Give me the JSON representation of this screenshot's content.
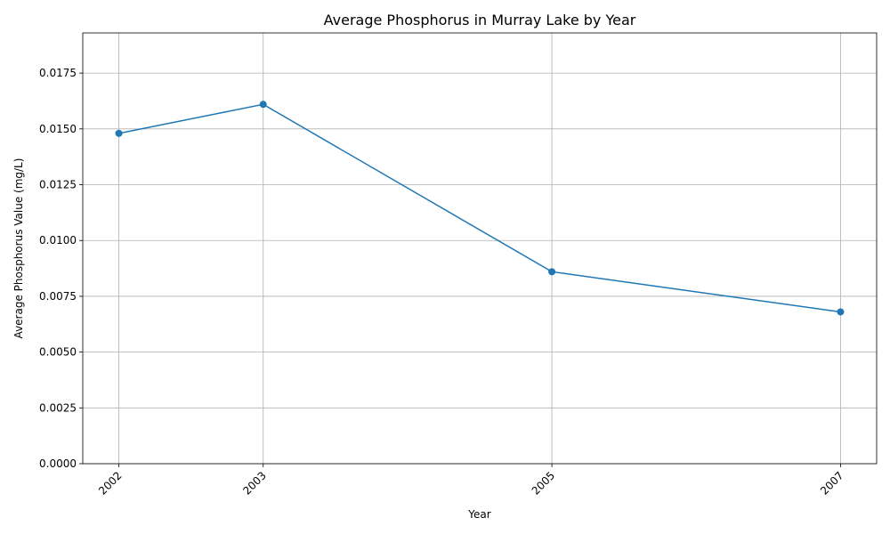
{
  "chart_data": {
    "type": "line",
    "title": "Average Phosphorus in Murray Lake by Year",
    "xlabel": "Year",
    "ylabel": "Average Phosphorus Value (mg/L)",
    "x": [
      2002,
      2003,
      2005,
      2007
    ],
    "x_tick_labels": [
      "2002",
      "2003",
      "2005",
      "2007"
    ],
    "series": [
      {
        "values": [
          0.0148,
          0.0161,
          0.0086,
          0.0068
        ]
      }
    ],
    "xlim": [
      2001.75,
      2007.25
    ],
    "ylim": [
      0,
      0.0193
    ],
    "y_ticks": [
      0.0,
      0.0025,
      0.005,
      0.0075,
      0.01,
      0.0125,
      0.015,
      0.0175
    ],
    "y_tick_labels": [
      "0.0000",
      "0.0025",
      "0.0050",
      "0.0075",
      "0.0100",
      "0.0125",
      "0.0150",
      "0.0175"
    ],
    "grid": true,
    "line_color": "#1f77b4",
    "marker": "circle"
  }
}
